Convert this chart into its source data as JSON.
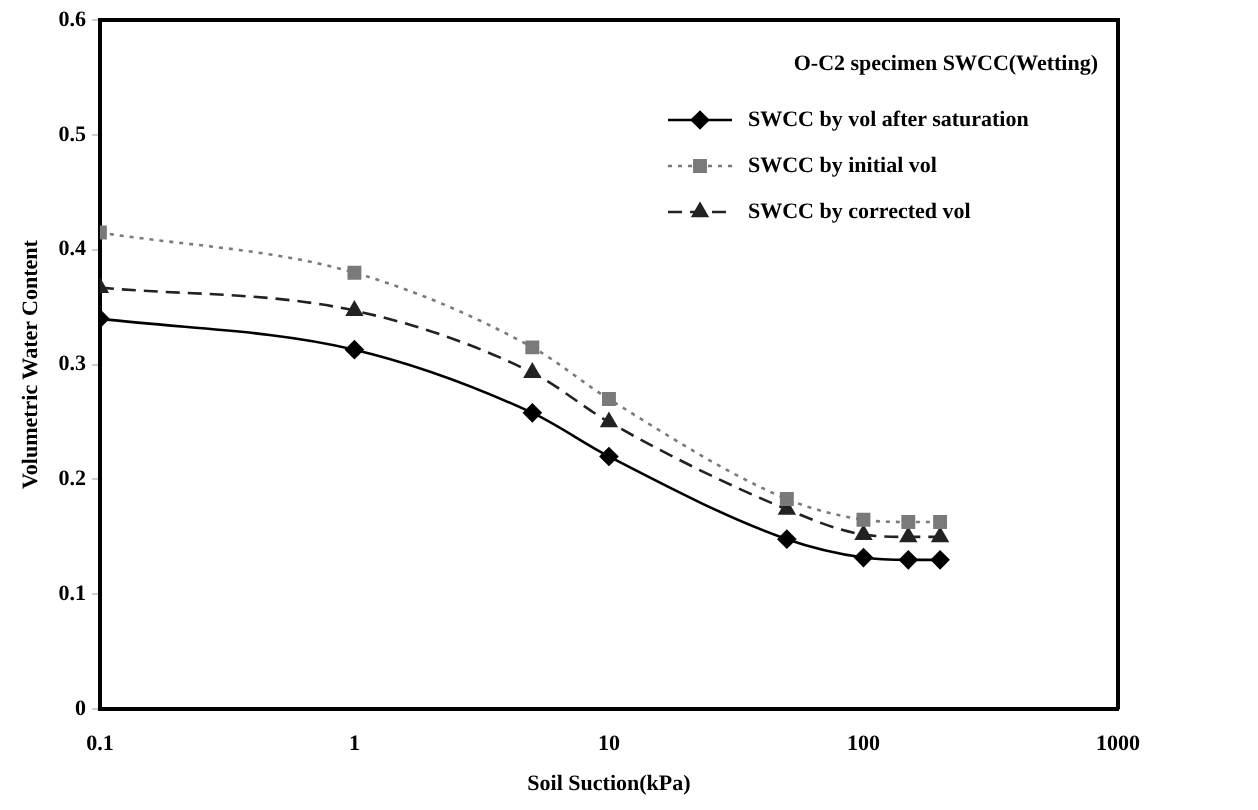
{
  "chart_data": {
    "type": "line",
    "xlabel": "Soil Suction(kPa)",
    "ylabel": "Volumetric Water Content",
    "legend_title": "O-C2 specimen SWCC(Wetting)",
    "x": [
      0.1,
      1,
      5,
      10,
      50,
      100,
      150,
      200
    ],
    "log": "x",
    "xlim": [
      0.1,
      1000
    ],
    "xticks": [
      0.1,
      1,
      10,
      100,
      1000
    ],
    "ylim": [
      0,
      0.6
    ],
    "yticks": [
      0,
      0.1,
      0.2,
      0.3,
      0.4,
      0.5,
      0.6
    ],
    "grid": false,
    "legend": "top right",
    "series": [
      {
        "name": "SWCC by vol after saturation",
        "color": "#000000",
        "marker": "diamond",
        "line_style": "solid",
        "values": [
          0.34,
          0.313,
          0.258,
          0.22,
          0.148,
          0.132,
          0.13,
          0.13
        ]
      },
      {
        "name": "SWCC by initial vol",
        "color": "#7a7a7a",
        "marker": "square",
        "line_style": "dotted",
        "values": [
          0.415,
          0.38,
          0.315,
          0.27,
          0.183,
          0.165,
          0.163,
          0.163
        ]
      },
      {
        "name": "SWCC by corrected vol",
        "color": "#222222",
        "marker": "triangle",
        "line_style": "dashed",
        "values": [
          0.367,
          0.347,
          0.293,
          0.25,
          0.174,
          0.152,
          0.15,
          0.15
        ]
      }
    ]
  }
}
